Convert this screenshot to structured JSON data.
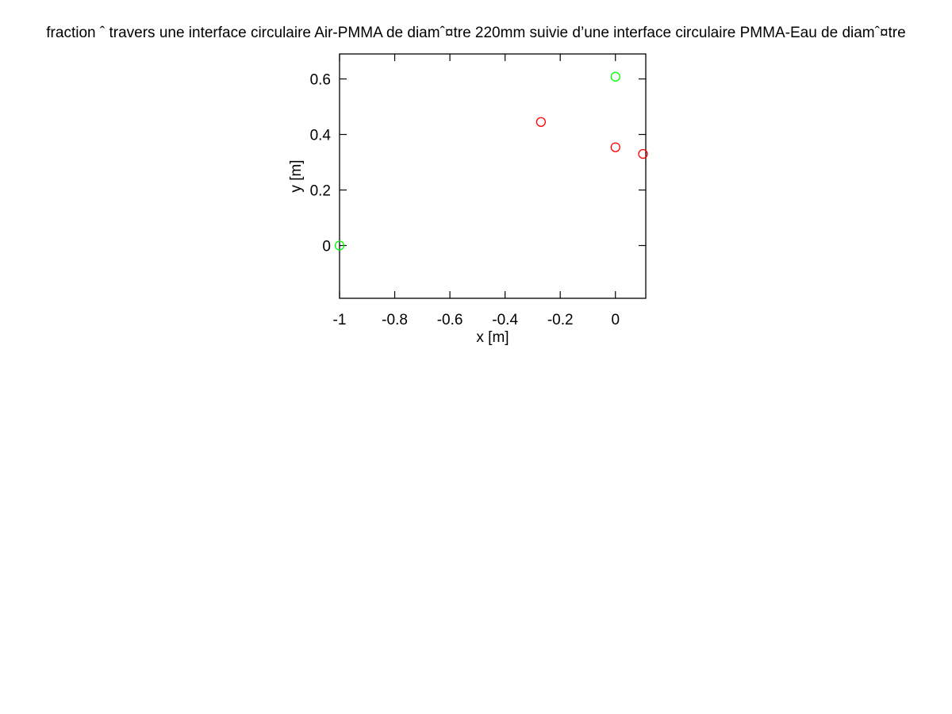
{
  "chart_data": {
    "type": "scatter",
    "title": "fraction ˆ  travers une interface circulaire Air-PMMA de diamˆ¤tre 220mm suivie d’une interface circulaire PMMA-Eau de diamˆ¤tre",
    "xlabel": "x [m]",
    "ylabel": "y [m]",
    "xlim": [
      -1,
      0.11
    ],
    "ylim": [
      -0.19,
      0.69
    ],
    "x_ticks": [
      -1,
      -0.8,
      -0.6,
      -0.4,
      -0.2,
      0
    ],
    "x_tick_labels": [
      "-1",
      "-0.8",
      "-0.6",
      "-0.4",
      "-0.2",
      "0"
    ],
    "y_ticks": [
      0,
      0.2,
      0.4,
      0.6
    ],
    "y_tick_labels": [
      "0",
      "0.2",
      "0.4",
      "0.6"
    ],
    "grid": false,
    "marker": "open-circle",
    "series": [
      {
        "color": "#00ff00",
        "points": [
          {
            "x": -1.0,
            "y": 0.0
          },
          {
            "x": 0.0,
            "y": 0.608
          }
        ]
      },
      {
        "color": "#ff0000",
        "points": [
          {
            "x": -0.27,
            "y": 0.445
          },
          {
            "x": 0.0,
            "y": 0.354
          },
          {
            "x": 0.1,
            "y": 0.33
          }
        ]
      }
    ]
  }
}
